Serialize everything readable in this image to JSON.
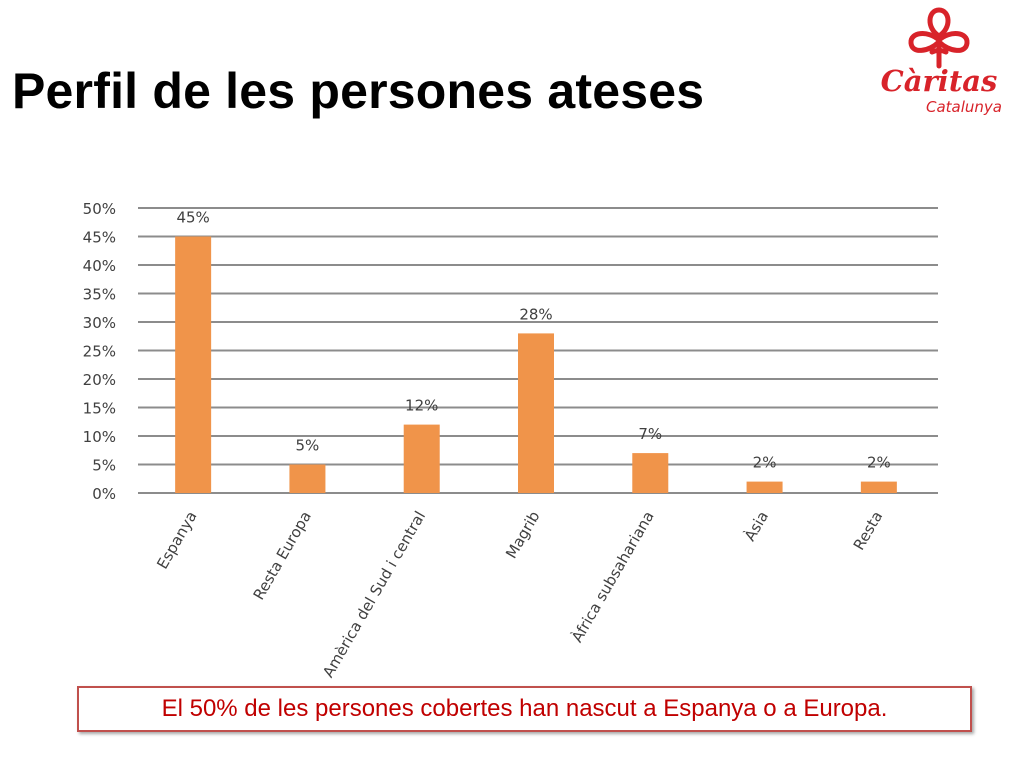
{
  "slide": {
    "title": "Perfil de les persones ateses",
    "logo": {
      "name": "Càritas",
      "region": "Catalunya",
      "color": "#d8232a"
    },
    "note": "El 50% de les persones cobertes han nascut a Espanya o a Europa."
  },
  "chart_data": {
    "type": "bar",
    "categories": [
      "Espanya",
      "Resta Europa",
      "Amèrica del Sud i central",
      "Magrib",
      "Àfrica subsahariana",
      "Àsia",
      "Resta"
    ],
    "values": [
      45,
      5,
      12,
      28,
      7,
      2,
      2
    ],
    "value_labels": [
      "45%",
      "5%",
      "12%",
      "28%",
      "7%",
      "2%",
      "2%"
    ],
    "ylim": [
      0,
      50
    ],
    "yticks": [
      "0%",
      "5%",
      "10%",
      "15%",
      "20%",
      "25%",
      "30%",
      "35%",
      "40%",
      "45%",
      "50%"
    ],
    "grid": true,
    "bar_color": "#f0944a",
    "xlabel": "",
    "ylabel": ""
  }
}
